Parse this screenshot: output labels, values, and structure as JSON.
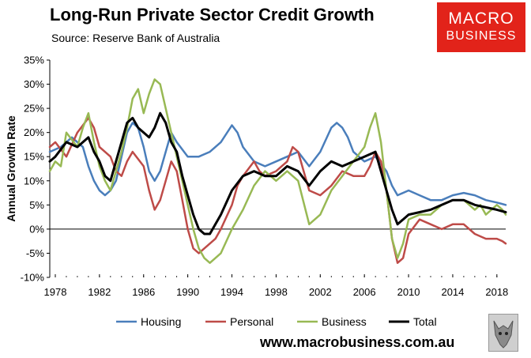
{
  "header": {
    "title": "Long-Run Private Sector Credit Growth",
    "subtitle": "Source: Reserve Bank of Australia"
  },
  "logo": {
    "line1": "MACRO",
    "line2": "BUSINESS"
  },
  "footer": {
    "url": "www.macrobusiness.com.au",
    "badge_icon": "wolf-icon"
  },
  "chart_data": {
    "type": "line",
    "title": "Long-Run Private Sector Credit Growth",
    "ylabel": "Annual Growth Rate",
    "xlabel": "",
    "xlim": [
      1977.5,
      2018.8
    ],
    "ylim": [
      -10,
      35
    ],
    "x_ticks": [
      1978,
      1982,
      1986,
      1990,
      1994,
      1998,
      2002,
      2006,
      2010,
      2014,
      2018
    ],
    "x_tick_labels": [
      "1978",
      "1982",
      "1986",
      "1990",
      "1994",
      "1998",
      "2002",
      "2006",
      "2010",
      "2014",
      "2018"
    ],
    "y_ticks": [
      -10,
      -5,
      0,
      5,
      10,
      15,
      20,
      25,
      30,
      35
    ],
    "y_tick_labels": [
      "-10%",
      "-5%",
      "0%",
      "5%",
      "10%",
      "15%",
      "20%",
      "25%",
      "30%",
      "35%"
    ],
    "grid": false,
    "legend_position": "bottom",
    "series": [
      {
        "name": "Housing",
        "color": "#4a7ebb",
        "width": 2.5,
        "x": [
          1977.5,
          1978.5,
          1979.5,
          1980.5,
          1981.0,
          1981.5,
          1982.0,
          1982.5,
          1983.0,
          1983.5,
          1984.0,
          1984.5,
          1985.0,
          1985.5,
          1986.0,
          1986.5,
          1987.0,
          1987.5,
          1988.0,
          1988.5,
          1989.0,
          1990.0,
          1991.0,
          1992.0,
          1993.0,
          1994.0,
          1994.5,
          1995.0,
          1996.0,
          1997.0,
          1998.0,
          1999.0,
          2000.0,
          2001.0,
          2002.0,
          2003.0,
          2003.5,
          2004.0,
          2004.5,
          2005.0,
          2006.0,
          2007.0,
          2008.0,
          2008.5,
          2009.0,
          2010.0,
          2011.0,
          2012.0,
          2013.0,
          2014.0,
          2015.0,
          2016.0,
          2017.0,
          2018.0,
          2018.8
        ],
        "y": [
          16,
          17,
          19,
          17,
          13,
          10,
          8,
          7,
          8,
          10,
          15,
          20,
          22,
          21,
          17,
          12,
          10,
          12,
          16,
          20,
          18,
          15,
          15,
          16,
          18,
          21.5,
          20,
          17,
          14,
          13,
          14,
          15,
          16,
          13,
          16,
          21,
          22,
          21,
          19,
          16,
          14,
          15,
          12,
          9,
          7,
          8,
          7,
          6,
          6,
          7,
          7.5,
          7,
          6,
          5.5,
          5
        ]
      },
      {
        "name": "Personal",
        "color": "#be4b48",
        "width": 2.5,
        "x": [
          1977.5,
          1978.0,
          1979.0,
          1980.0,
          1981.0,
          1981.5,
          1982.0,
          1983.0,
          1983.5,
          1984.0,
          1984.5,
          1985.0,
          1986.0,
          1986.5,
          1987.0,
          1987.5,
          1988.0,
          1988.5,
          1989.0,
          1989.5,
          1990.0,
          1990.5,
          1991.0,
          1991.5,
          1992.0,
          1992.5,
          1993.0,
          1994.0,
          1994.5,
          1995.0,
          1996.0,
          1996.5,
          1997.0,
          1998.0,
          1999.0,
          1999.5,
          2000.0,
          2000.5,
          2001.0,
          2002.0,
          2003.0,
          2004.0,
          2005.0,
          2006.0,
          2006.5,
          2007.0,
          2007.5,
          2008.0,
          2008.5,
          2009.0,
          2009.5,
          2010.0,
          2011.0,
          2012.0,
          2013.0,
          2014.0,
          2015.0,
          2016.0,
          2017.0,
          2018.0,
          2018.5,
          2018.8
        ],
        "y": [
          17,
          18,
          15,
          20,
          23,
          21,
          17,
          15,
          12,
          11,
          14,
          16,
          13,
          8,
          4,
          6,
          10,
          14,
          12,
          6,
          0,
          -4,
          -5,
          -4,
          -3,
          -2,
          0,
          5,
          9,
          11,
          14,
          12,
          11,
          12,
          14,
          17,
          16,
          12,
          8,
          7,
          9,
          12,
          11,
          11,
          13,
          16,
          14,
          8,
          -2,
          -7,
          -6,
          -1,
          2,
          1,
          0,
          1,
          1,
          -1,
          -2,
          -2,
          -2.5,
          -3
        ]
      },
      {
        "name": "Business",
        "color": "#98b954",
        "width": 2.5,
        "x": [
          1977.5,
          1978.0,
          1978.5,
          1979.0,
          1980.0,
          1980.5,
          1981.0,
          1981.5,
          1982.0,
          1982.5,
          1983.0,
          1983.5,
          1984.0,
          1984.5,
          1985.0,
          1985.5,
          1986.0,
          1986.5,
          1987.0,
          1987.5,
          1988.0,
          1988.5,
          1989.0,
          1989.5,
          1990.0,
          1990.5,
          1991.0,
          1991.5,
          1992.0,
          1993.0,
          1994.0,
          1995.0,
          1996.0,
          1997.0,
          1998.0,
          1999.0,
          2000.0,
          2001.0,
          2002.0,
          2003.0,
          2004.0,
          2005.0,
          2006.0,
          2006.5,
          2007.0,
          2007.5,
          2008.0,
          2008.5,
          2009.0,
          2009.5,
          2010.0,
          2011.0,
          2012.0,
          2013.0,
          2014.0,
          2015.0,
          2016.0,
          2016.5,
          2017.0,
          2017.5,
          2018.0,
          2018.5,
          2018.8
        ],
        "y": [
          12,
          14,
          13,
          20,
          17,
          21,
          24,
          18,
          13,
          10,
          8,
          12,
          16,
          21,
          27,
          29,
          24,
          28,
          31,
          30,
          25,
          20,
          15,
          10,
          5,
          0,
          -4,
          -6,
          -7,
          -5,
          0,
          4,
          9,
          12,
          10,
          12,
          10,
          1,
          3,
          8,
          11,
          14,
          17,
          21,
          24,
          18,
          8,
          -2,
          -6,
          -3,
          2,
          3,
          3,
          5,
          6,
          6,
          4,
          5,
          3,
          4,
          5,
          4,
          3
        ]
      },
      {
        "name": "Total",
        "color": "#000000",
        "width": 3,
        "x": [
          1977.5,
          1978.0,
          1979.0,
          1980.0,
          1981.0,
          1981.5,
          1982.0,
          1982.5,
          1983.0,
          1983.5,
          1984.0,
          1984.5,
          1985.0,
          1985.5,
          1986.0,
          1986.5,
          1987.0,
          1987.5,
          1988.0,
          1988.5,
          1989.0,
          1989.5,
          1990.0,
          1990.5,
          1991.0,
          1991.5,
          1992.0,
          1993.0,
          1994.0,
          1995.0,
          1996.0,
          1997.0,
          1998.0,
          1999.0,
          2000.0,
          2001.0,
          2002.0,
          2003.0,
          2004.0,
          2005.0,
          2006.0,
          2007.0,
          2007.5,
          2008.0,
          2008.5,
          2009.0,
          2009.5,
          2010.0,
          2011.0,
          2012.0,
          2013.0,
          2014.0,
          2015.0,
          2016.0,
          2017.0,
          2018.0,
          2018.8
        ],
        "y": [
          14,
          15,
          18,
          17,
          19,
          16,
          14,
          11,
          10,
          14,
          18,
          22,
          23,
          21,
          20,
          19,
          21,
          24,
          22,
          18,
          16,
          11,
          7,
          3,
          0,
          -1,
          -1,
          3,
          8,
          11,
          12,
          11,
          11,
          13,
          12,
          9,
          12,
          14,
          13,
          14,
          15,
          16,
          12,
          8,
          4,
          1,
          2,
          3,
          3.5,
          4,
          5,
          6,
          6,
          5,
          4.5,
          4,
          3.5
        ]
      }
    ]
  }
}
